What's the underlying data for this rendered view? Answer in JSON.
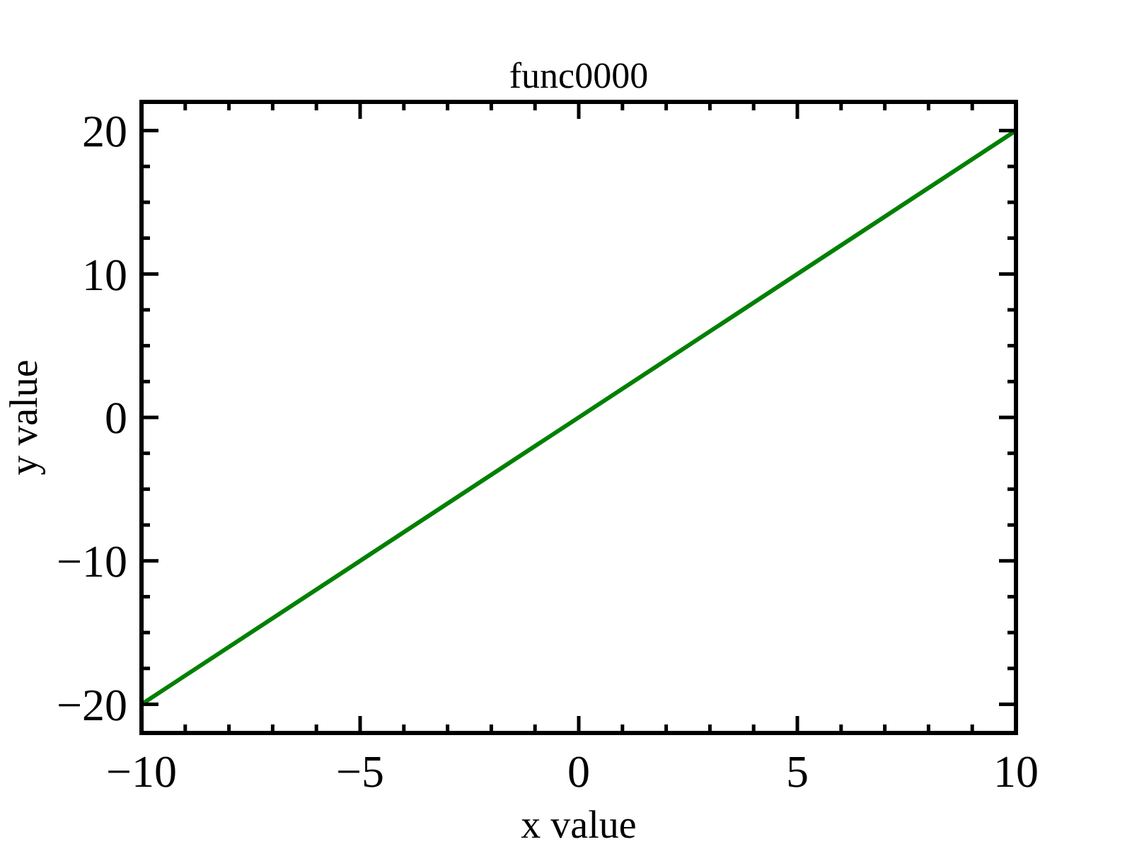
{
  "chart_data": {
    "type": "line",
    "title": "func0000",
    "xlabel": "x value",
    "ylabel": "y value",
    "x": [
      -10,
      10
    ],
    "series": [
      {
        "color": "#008000",
        "values": [
          -20,
          20
        ]
      }
    ],
    "xlim": [
      -10,
      10
    ],
    "ylim": [
      -22,
      22
    ],
    "xticks": [
      -10,
      {
        "value": -9,
        "label": null
      },
      {
        "value": -8,
        "label": null
      },
      {
        "value": -7,
        "label": null
      },
      {
        "value": -6,
        "label": null
      },
      -5,
      {
        "value": -4,
        "label": null
      },
      {
        "value": -3,
        "label": null
      },
      {
        "value": -2,
        "label": null
      },
      {
        "value": -1,
        "label": null
      },
      0,
      {
        "value": 1,
        "label": null
      },
      {
        "value": 2,
        "label": null
      },
      {
        "value": 3,
        "label": null
      },
      {
        "value": 4,
        "label": null
      },
      5,
      {
        "value": 6,
        "label": null
      },
      {
        "value": 7,
        "label": null
      },
      {
        "value": 8,
        "label": null
      },
      {
        "value": 9,
        "label": null
      },
      10
    ],
    "yticks": [
      -20,
      {
        "value": -17.5,
        "label": null
      },
      {
        "value": -15,
        "label": null
      },
      {
        "value": -12.5,
        "label": null
      },
      -10,
      {
        "value": -7.5,
        "label": null
      },
      {
        "value": -5,
        "label": null
      },
      {
        "value": -2.5,
        "label": null
      },
      0,
      {
        "value": 2.5,
        "label": null
      },
      {
        "value": 5,
        "label": null
      },
      {
        "value": 7.5,
        "label": null
      },
      10,
      {
        "value": 12.5,
        "label": null
      },
      {
        "value": 15,
        "label": null
      },
      {
        "value": 17.5,
        "label": null
      },
      20
    ],
    "grid": false,
    "marker": "none",
    "line_style": "solid"
  }
}
